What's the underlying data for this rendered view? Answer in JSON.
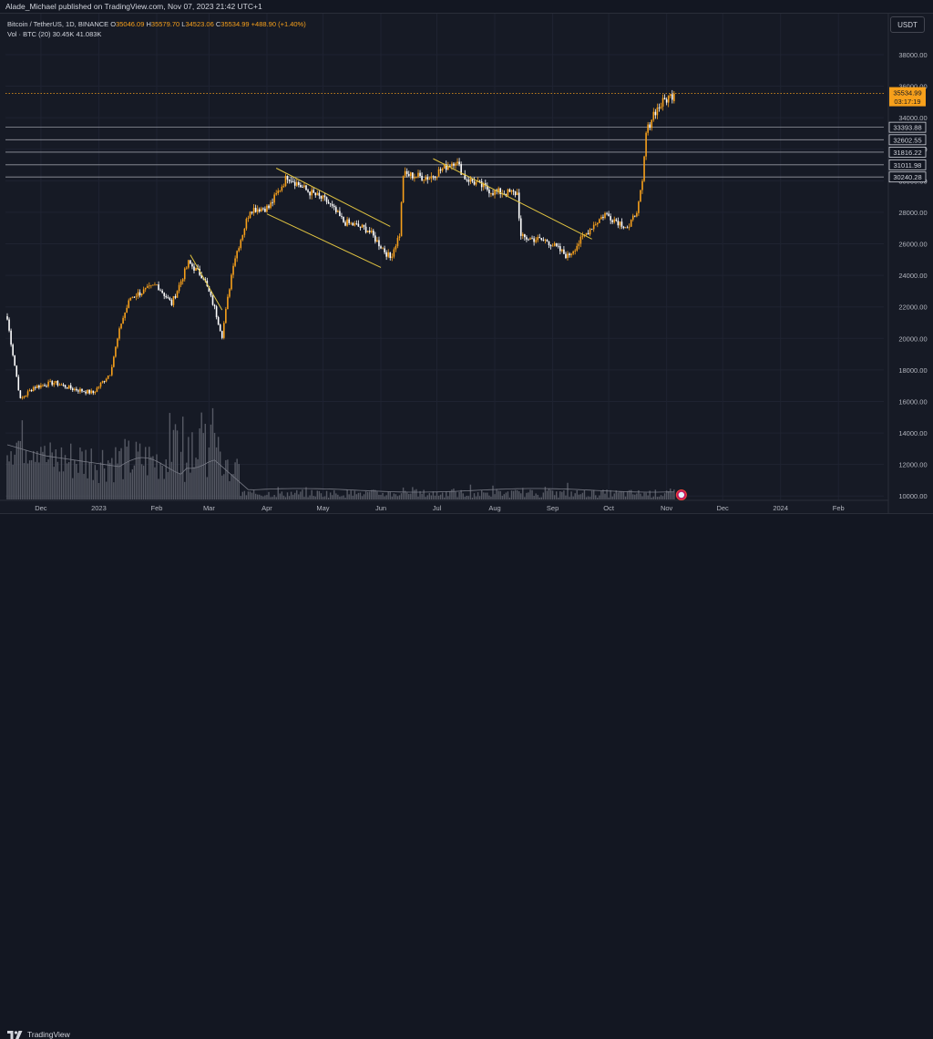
{
  "header": {
    "publisher_text": "Alade_Michael published on TradingView.com, Nov 07, 2023 21:42 UTC+1"
  },
  "legend": {
    "symbol": "Bitcoin / TetherUS, 1D, BINANCE",
    "o_label": "O",
    "o_value": "35046.09",
    "h_label": "H",
    "h_value": "35579.70",
    "l_label": "L",
    "l_value": "34523.06",
    "c_label": "C",
    "c_value": "35534.99",
    "change": "+488.90 (+1.40%)",
    "vol_label": "Vol · BTC (20)",
    "vol_value": "30.45K",
    "vol_ma": "41.083K"
  },
  "currency_button": "USDT",
  "footer": {
    "brand": "TradingView"
  },
  "colors": {
    "background": "#161a25",
    "up": "#f7a01b",
    "down": "#ffffff",
    "trendline": "#e0c341",
    "level_line": "#9598a1",
    "price_line": "#f7a01b"
  },
  "chart_data": {
    "type": "candlestick",
    "symbol": "BTCUSDT",
    "interval": "1D",
    "y_ticks": [
      10000,
      12000,
      14000,
      16000,
      18000,
      20000,
      22000,
      24000,
      26000,
      28000,
      30000,
      32000,
      34000,
      36000,
      38000
    ],
    "y_tick_labels": [
      "10000.00",
      "12000.00",
      "14000.00",
      "16000.00",
      "18000.00",
      "20000.00",
      "22000.00",
      "24000.00",
      "26000.00",
      "28000.00",
      "30000.00",
      "32000.00",
      "34000.00",
      "36000.00",
      "38000.00"
    ],
    "ylim": [
      8800,
      40600
    ],
    "x_ticks": [
      "Dec",
      "2023",
      "Feb",
      "Mar",
      "Apr",
      "May",
      "Jun",
      "Jul",
      "Aug",
      "Sep",
      "Oct",
      "Nov",
      "Dec",
      "2024",
      "Feb"
    ],
    "x_tick_days": [
      18,
      49,
      80,
      108,
      139,
      169,
      200,
      230,
      261,
      292,
      322,
      353,
      383,
      414,
      445
    ],
    "current_price": {
      "value": 35534.99,
      "label": "35534.99",
      "countdown": "03:17:19"
    },
    "levels": [
      {
        "value": 33393.88,
        "label": "33393.88"
      },
      {
        "value": 32602.55,
        "label": "32602.55"
      },
      {
        "value": 31816.22,
        "label": "31816.22"
      },
      {
        "value": 31011.98,
        "label": "31011.98"
      },
      {
        "value": 30240.28,
        "label": "30240.28"
      }
    ],
    "key_closes": [
      {
        "date": "2022-11-15",
        "close": 21200
      },
      {
        "date": "2022-11-22",
        "close": 16100
      },
      {
        "date": "2022-12-31",
        "close": 16550
      },
      {
        "date": "2023-01-20",
        "close": 22400
      },
      {
        "date": "2023-02-20",
        "close": 24800
      },
      {
        "date": "2023-03-10",
        "close": 20200
      },
      {
        "date": "2023-04-14",
        "close": 30300
      },
      {
        "date": "2023-06-15",
        "close": 25100
      },
      {
        "date": "2023-07-13",
        "close": 31300
      },
      {
        "date": "2023-08-17",
        "close": 26400
      },
      {
        "date": "2023-09-11",
        "close": 25200
      },
      {
        "date": "2023-10-23",
        "close": 33000
      },
      {
        "date": "2023-11-07",
        "close": 35534.99
      }
    ],
    "trendlines": [
      {
        "from": {
          "day": 98,
          "price": 25300
        },
        "to": {
          "day": 115,
          "price": 21800
        }
      },
      {
        "from": {
          "day": 144,
          "price": 30800
        },
        "to": {
          "day": 205,
          "price": 27100
        }
      },
      {
        "from": {
          "day": 139,
          "price": 27900
        },
        "to": {
          "day": 200,
          "price": 24500
        }
      },
      {
        "from": {
          "day": 228,
          "price": 31400
        },
        "to": {
          "day": 313,
          "price": 26300
        }
      }
    ],
    "volume": {
      "ma_period": 20,
      "last": "30.45K",
      "ma": "41.083K"
    }
  }
}
